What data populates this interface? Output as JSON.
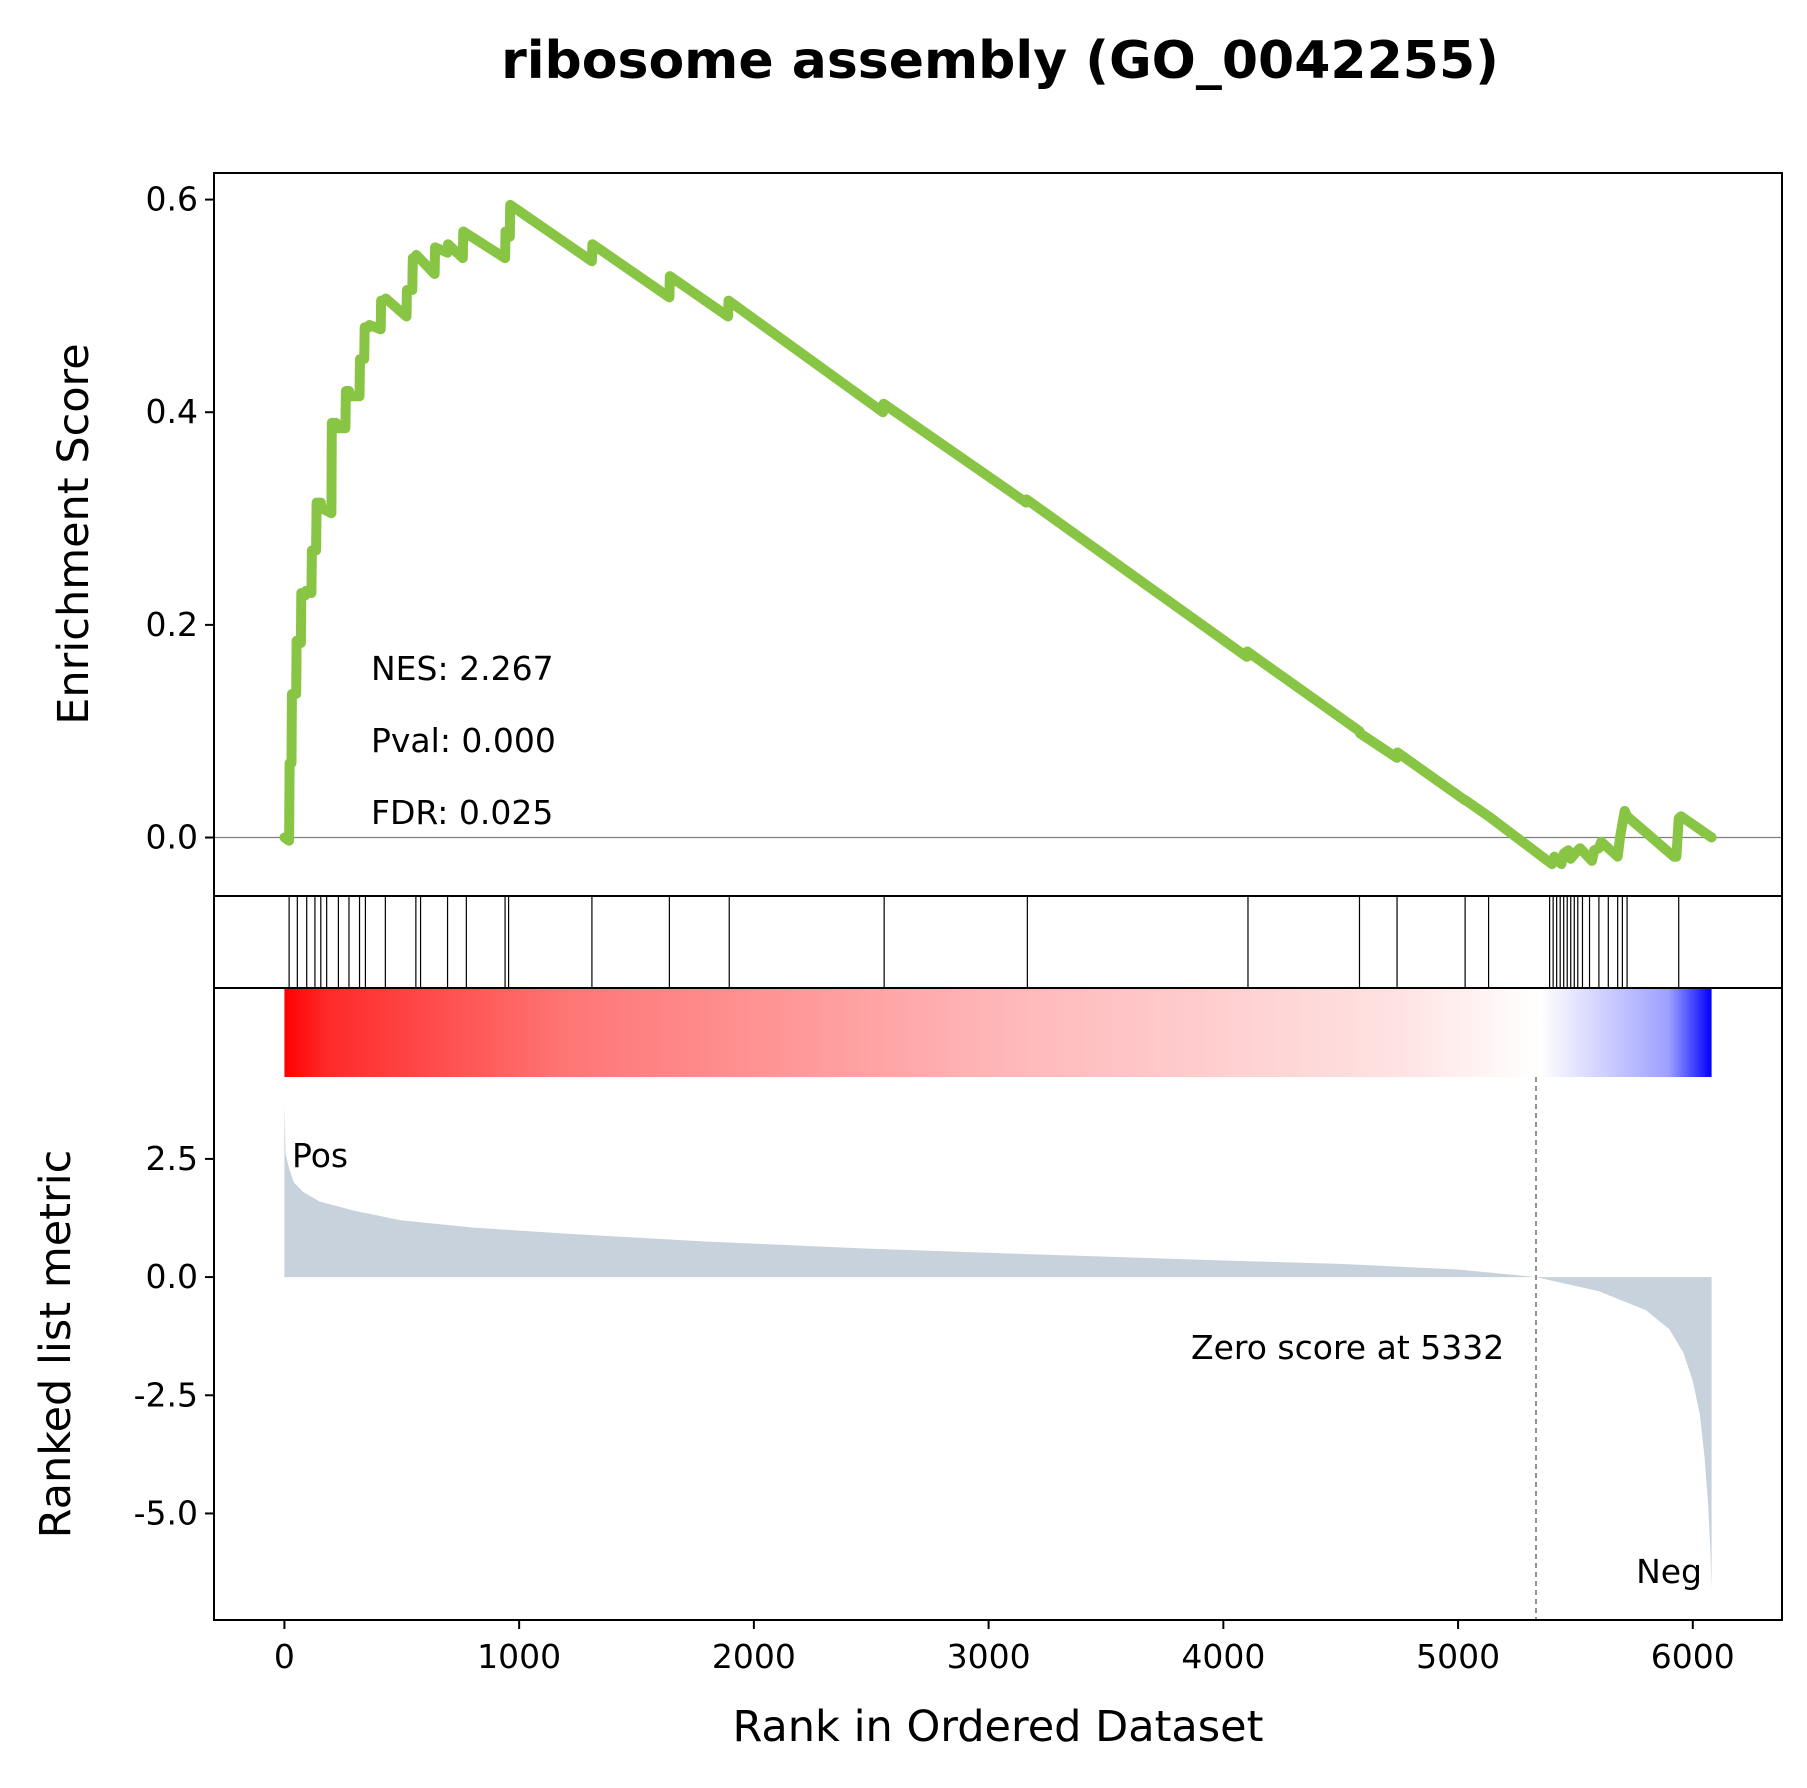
{
  "chart_data": {
    "type": "line",
    "title": "ribosome assembly (GO_0042255)",
    "xlabel": "Rank in Ordered Dataset",
    "es_panel": {
      "ylabel": "Enrichment Score",
      "ylim": [
        -0.055,
        0.625
      ],
      "yticks": [
        0.0,
        0.2,
        0.4,
        0.6
      ],
      "ytick_labels": [
        "0.0",
        "0.2",
        "0.4",
        "0.6"
      ],
      "line_color": "#88c544",
      "zero_line_color": "#808080",
      "series": [
        {
          "x": [
            0,
            20,
            22,
            30,
            32,
            50,
            52,
            70,
            72,
            90,
            92,
            115,
            117,
            135,
            137,
            155,
            157,
            200,
            202,
            220,
            222,
            260,
            262,
            275,
            277,
            320,
            322,
            340,
            342,
            360,
            362,
            410,
            412,
            430,
            432,
            520,
            522,
            545,
            547,
            560,
            562,
            640,
            642,
            695,
            697,
            760,
            762,
            940,
            942,
            960,
            962,
            1310,
            1312,
            1640,
            1642,
            1890,
            1892,
            2550,
            2552,
            3160,
            3162,
            4100,
            4102,
            4580,
            4582,
            4740,
            4742,
            5030,
            5032,
            5130,
            5400,
            5410,
            5440,
            5450,
            5470,
            5480,
            5510,
            5520,
            5570,
            5580,
            5600,
            5610,
            5680,
            5690,
            5710,
            5720,
            5920,
            5930,
            5940,
            5950,
            6080
          ],
          "y": [
            0.0,
            -0.003,
            0.07,
            0.07,
            0.135,
            0.135,
            0.185,
            0.183,
            0.23,
            0.228,
            0.232,
            0.23,
            0.27,
            0.27,
            0.315,
            0.315,
            0.31,
            0.305,
            0.39,
            0.39,
            0.385,
            0.385,
            0.42,
            0.42,
            0.415,
            0.415,
            0.45,
            0.45,
            0.48,
            0.48,
            0.482,
            0.478,
            0.505,
            0.505,
            0.507,
            0.49,
            0.515,
            0.515,
            0.545,
            0.545,
            0.548,
            0.53,
            0.555,
            0.55,
            0.558,
            0.545,
            0.57,
            0.545,
            0.57,
            0.565,
            0.595,
            0.542,
            0.558,
            0.508,
            0.528,
            0.49,
            0.505,
            0.4,
            0.408,
            0.315,
            0.318,
            0.17,
            0.175,
            0.1,
            0.098,
            0.075,
            0.08,
            0.035,
            0.035,
            0.02,
            -0.025,
            -0.018,
            -0.025,
            -0.015,
            -0.012,
            -0.02,
            -0.012,
            -0.01,
            -0.022,
            -0.012,
            -0.01,
            -0.004,
            -0.018,
            0.0,
            0.025,
            0.02,
            -0.018,
            -0.018,
            0.018,
            0.02,
            0.0
          ]
        }
      ],
      "annotations": [
        "NES: 2.267",
        "Pval: 0.000",
        "FDR: 0.025"
      ]
    },
    "hits": [
      20,
      55,
      95,
      130,
      155,
      180,
      230,
      275,
      320,
      345,
      430,
      560,
      580,
      695,
      775,
      940,
      955,
      1310,
      1640,
      1895,
      2555,
      3165,
      4105,
      4580,
      4740,
      5030,
      5130,
      5390,
      5405,
      5420,
      5435,
      5450,
      5465,
      5480,
      5495,
      5510,
      5530,
      5560,
      5600,
      5640,
      5680,
      5700,
      5720,
      5940
    ],
    "colorbar": {
      "colors": [
        "#ff0000",
        "#ffffff",
        "#0000ff"
      ]
    },
    "rank_panel": {
      "ylabel": "Ranked list metric",
      "ylim": [
        -7.0,
        4.0
      ],
      "yticks": [
        -5.0,
        -2.5,
        0.0,
        2.5
      ],
      "ytick_labels": [
        "-5.0",
        "-2.5",
        "0.0",
        "2.5"
      ],
      "fill_color": "#c8d2dc",
      "zero_cross": 5332,
      "zero_label": "Zero score at 5332",
      "pos_label": "Pos",
      "neg_label": "Neg",
      "pos_color": "#ff0000",
      "neg_color": "#0000ff",
      "profile": {
        "x": [
          0,
          5,
          20,
          40,
          80,
          150,
          300,
          500,
          800,
          1200,
          1800,
          2500,
          3200,
          4000,
          4500,
          5000,
          5332,
          5600,
          5800,
          5900,
          5960,
          6000,
          6030,
          6050,
          6065,
          6075,
          6080
        ],
        "y": [
          3.65,
          2.6,
          2.3,
          2.0,
          1.8,
          1.6,
          1.4,
          1.2,
          1.05,
          0.92,
          0.75,
          0.6,
          0.48,
          0.35,
          0.28,
          0.16,
          0.0,
          -0.3,
          -0.7,
          -1.1,
          -1.6,
          -2.2,
          -2.9,
          -3.8,
          -4.8,
          -5.8,
          -6.6
        ]
      }
    },
    "x_axis": {
      "xlim": [
        -300,
        6380
      ],
      "xticks": [
        0,
        1000,
        2000,
        3000,
        4000,
        5000,
        6000
      ],
      "xtick_labels": [
        "0",
        "1000",
        "2000",
        "3000",
        "4000",
        "5000",
        "6000"
      ]
    }
  }
}
